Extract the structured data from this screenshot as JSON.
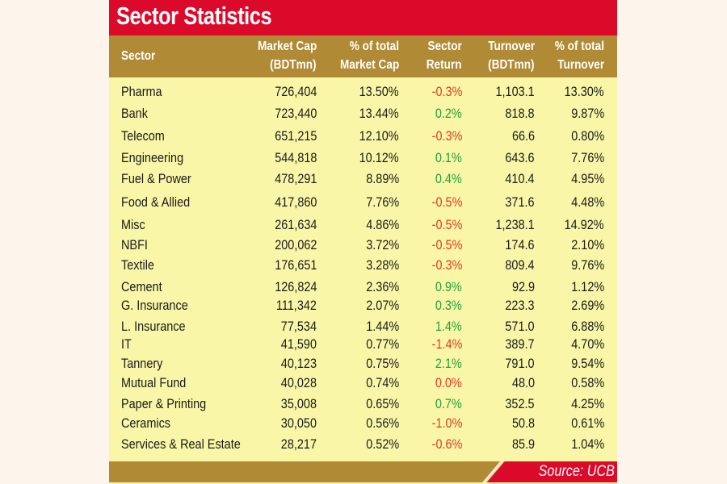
{
  "title": "Sector Statistics",
  "source": "Source: UCB",
  "colors": {
    "title_bg": "#dc0a2a",
    "header_bg": "#b08a35",
    "body_bg": "#faf6a8",
    "positive": "#22a03a",
    "negative": "#e03a1f"
  },
  "chart_data": {
    "type": "table",
    "title": "Sector Statistics",
    "columns": [
      {
        "line1": "Sector",
        "line2": ""
      },
      {
        "line1": "Market Cap",
        "line2": "(BDTmn)"
      },
      {
        "line1": "% of total",
        "line2": "Market Cap"
      },
      {
        "line1": "Sector",
        "line2": "Return"
      },
      {
        "line1": "Turnover",
        "line2": "(BDTmn)"
      },
      {
        "line1": "% of total",
        "line2": "Turnover"
      }
    ],
    "rows": [
      {
        "sector": "Pharma",
        "market_cap": "726,404",
        "pct_market_cap": "13.50%",
        "sector_return": "-0.3%",
        "turnover": "1,103.1",
        "pct_turnover": "13.30%"
      },
      {
        "sector": "Bank",
        "market_cap": "723,440",
        "pct_market_cap": "13.44%",
        "sector_return": "0.2%",
        "turnover": "818.8",
        "pct_turnover": "9.87%"
      },
      {
        "sector": "Telecom",
        "market_cap": "651,215",
        "pct_market_cap": "12.10%",
        "sector_return": "-0.3%",
        "turnover": "66.6",
        "pct_turnover": "0.80%"
      },
      {
        "sector": "Engineering",
        "market_cap": "544,818",
        "pct_market_cap": "10.12%",
        "sector_return": "0.1%",
        "turnover": "643.6",
        "pct_turnover": "7.76%"
      },
      {
        "sector": "Fuel & Power",
        "market_cap": "478,291",
        "pct_market_cap": "8.89%",
        "sector_return": "0.4%",
        "turnover": "410.4",
        "pct_turnover": "4.95%"
      },
      {
        "sector": "Food & Allied",
        "market_cap": "417,860",
        "pct_market_cap": "7.76%",
        "sector_return": "-0.5%",
        "turnover": "371.6",
        "pct_turnover": "4.48%"
      },
      {
        "sector": "Misc",
        "market_cap": "261,634",
        "pct_market_cap": "4.86%",
        "sector_return": "-0.5%",
        "turnover": "1,238.1",
        "pct_turnover": "14.92%"
      },
      {
        "sector": "NBFI",
        "market_cap": "200,062",
        "pct_market_cap": "3.72%",
        "sector_return": "-0.5%",
        "turnover": "174.6",
        "pct_turnover": "2.10%"
      },
      {
        "sector": "Textile",
        "market_cap": "176,651",
        "pct_market_cap": "3.28%",
        "sector_return": "-0.3%",
        "turnover": "809.4",
        "pct_turnover": "9.76%"
      },
      {
        "sector": "Cement",
        "market_cap": "126,824",
        "pct_market_cap": "2.36%",
        "sector_return": "0.9%",
        "turnover": "92.9",
        "pct_turnover": "1.12%"
      },
      {
        "sector": "G. Insurance",
        "market_cap": "111,342",
        "pct_market_cap": "2.07%",
        "sector_return": "0.3%",
        "turnover": "223.3",
        "pct_turnover": "2.69%"
      },
      {
        "sector": "L. Insurance",
        "market_cap": "77,534",
        "pct_market_cap": "1.44%",
        "sector_return": "1.4%",
        "turnover": "571.0",
        "pct_turnover": "6.88%"
      },
      {
        "sector": "IT",
        "market_cap": "41,590",
        "pct_market_cap": "0.77%",
        "sector_return": "-1.4%",
        "turnover": "389.7",
        "pct_turnover": "4.70%"
      },
      {
        "sector": "Tannery",
        "market_cap": "40,123",
        "pct_market_cap": "0.75%",
        "sector_return": "2.1%",
        "turnover": "791.0",
        "pct_turnover": "9.54%"
      },
      {
        "sector": "Mutual Fund",
        "market_cap": "40,028",
        "pct_market_cap": "0.74%",
        "sector_return": "0.0%",
        "turnover": "48.0",
        "pct_turnover": "0.58%"
      },
      {
        "sector": "Paper & Printing",
        "market_cap": "35,008",
        "pct_market_cap": "0.65%",
        "sector_return": "0.7%",
        "turnover": "352.5",
        "pct_turnover": "4.25%"
      },
      {
        "sector": "Ceramics",
        "market_cap": "30,050",
        "pct_market_cap": "0.56%",
        "sector_return": "-1.0%",
        "turnover": "50.8",
        "pct_turnover": "0.61%"
      },
      {
        "sector": "Services & Real Estate",
        "market_cap": "28,217",
        "pct_market_cap": "0.52%",
        "sector_return": "-0.6%",
        "turnover": "85.9",
        "pct_turnover": "1.04%"
      }
    ],
    "return_color_rule": {
      "negative_or_zero": "negative",
      "positive": "positive"
    }
  }
}
